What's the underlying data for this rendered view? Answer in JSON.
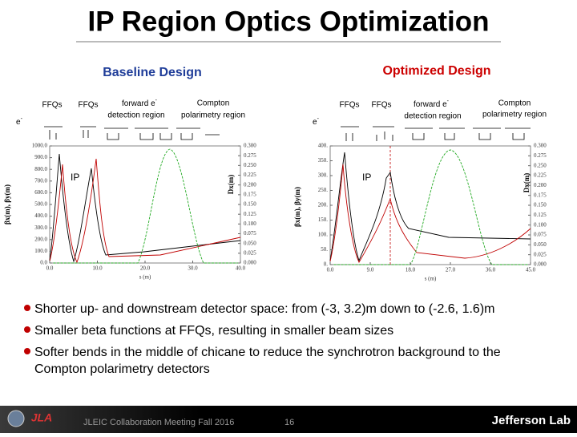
{
  "title": "IP Region Optics Optimization",
  "panels": [
    {
      "heading": "Baseline Design",
      "labels": {
        "ffq_up": "FFQs",
        "ffq_down": "FFQs",
        "forward": "forward e",
        "forward_sup": "-",
        "forward_region": "detection region",
        "compton": "Compton",
        "compton_region": "polarimetry region",
        "beam": "e",
        "beam_sup": "-",
        "ip": "IP"
      },
      "ylabel": "βx(m), βy(m)",
      "y2label": "Dx(m)",
      "xlabel": "s (m)",
      "ylim": [
        0,
        1000
      ],
      "yticks": [
        {
          "value": 0,
          "label": "0.0"
        },
        {
          "value": 100,
          "label": "100.0"
        },
        {
          "value": 200,
          "label": "200.0"
        },
        {
          "value": 300,
          "label": "300.0"
        },
        {
          "value": 400,
          "label": "400.0"
        },
        {
          "value": 500,
          "label": "500.0"
        },
        {
          "value": 600,
          "label": "600.0"
        },
        {
          "value": 700,
          "label": "700.0"
        },
        {
          "value": 800,
          "label": "800.0"
        },
        {
          "value": 900,
          "label": "900.0"
        },
        {
          "value": 1000,
          "label": "1000.0"
        }
      ],
      "y2lim": [
        0,
        0.3
      ],
      "y2ticks": [
        {
          "value": 0,
          "label": "0.000"
        },
        {
          "value": 0.025,
          "label": "0.025"
        },
        {
          "value": 0.05,
          "label": "0.050"
        },
        {
          "value": 0.075,
          "label": "0.075"
        },
        {
          "value": 0.1,
          "label": "0.100"
        },
        {
          "value": 0.125,
          "label": "0.125"
        },
        {
          "value": 0.15,
          "label": "0.150"
        },
        {
          "value": 0.175,
          "label": "0.175"
        },
        {
          "value": 0.2,
          "label": "0.200"
        },
        {
          "value": 0.225,
          "label": "0.225"
        },
        {
          "value": 0.25,
          "label": "0.250"
        },
        {
          "value": 0.275,
          "label": "0.275"
        },
        {
          "value": 0.3,
          "label": "0.300"
        }
      ],
      "xlim": [
        0,
        40
      ],
      "xticks": [
        {
          "value": 0,
          "label": "0.0"
        },
        {
          "value": 10,
          "label": "10.0"
        },
        {
          "value": 20,
          "label": "20.0"
        },
        {
          "value": 30,
          "label": "30.0"
        },
        {
          "value": 40,
          "label": "40.0"
        }
      ]
    },
    {
      "heading": "Optimized Design",
      "labels": {
        "ffq_up": "FFQs",
        "ffq_down": "FFQs",
        "forward": "forward e",
        "forward_sup": "-",
        "forward_region": "detection region",
        "compton": "Compton",
        "compton_region": "polarimetry region",
        "beam": "e",
        "beam_sup": "-",
        "ip": "IP"
      },
      "ylabel": "βx(m), βy(m)",
      "y2label": "Dx(m)",
      "xlabel": "s (m)",
      "ylim": [
        0,
        400
      ],
      "yticks": [
        {
          "value": 0,
          "label": "0."
        },
        {
          "value": 50,
          "label": "50."
        },
        {
          "value": 100,
          "label": "100."
        },
        {
          "value": 150,
          "label": "150."
        },
        {
          "value": 200,
          "label": "200."
        },
        {
          "value": 250,
          "label": "250."
        },
        {
          "value": 300,
          "label": "300."
        },
        {
          "value": 350,
          "label": "350."
        },
        {
          "value": 400,
          "label": "400."
        }
      ],
      "y2lim": [
        0,
        0.3
      ],
      "y2ticks": [
        {
          "value": 0,
          "label": "0.000"
        },
        {
          "value": 0.025,
          "label": "0.025"
        },
        {
          "value": 0.05,
          "label": "0.050"
        },
        {
          "value": 0.075,
          "label": "0.075"
        },
        {
          "value": 0.1,
          "label": "0.100"
        },
        {
          "value": 0.125,
          "label": "0.125"
        },
        {
          "value": 0.15,
          "label": "0.150"
        },
        {
          "value": 0.175,
          "label": "0.175"
        },
        {
          "value": 0.2,
          "label": "0.200"
        },
        {
          "value": 0.225,
          "label": "0.225"
        },
        {
          "value": 0.25,
          "label": "0.250"
        },
        {
          "value": 0.275,
          "label": "0.275"
        },
        {
          "value": 0.3,
          "label": "0.300"
        }
      ],
      "xlim": [
        0,
        45
      ],
      "xticks": [
        {
          "value": 0,
          "label": "0.0"
        },
        {
          "value": 9,
          "label": "9.0"
        },
        {
          "value": 18,
          "label": "18.0"
        },
        {
          "value": 27,
          "label": "27.0"
        },
        {
          "value": 36,
          "label": "36.0"
        },
        {
          "value": 45,
          "label": "45.0"
        }
      ]
    }
  ],
  "bullets": [
    "Shorter up- and downstream detector space: from (-3, 3.2)m down to (-2.6, 1.6)m",
    "Smaller beta functions at FFQs, resulting in smaller beam sizes",
    "Softer bends in the middle of chicane to reduce the synchrotron background to the",
    "Compton polarimetry detectors"
  ],
  "footer": {
    "meeting": "JLEIC Collaboration Meeting Fall 2016",
    "page": "16",
    "lab": "Jefferson Lab",
    "logo": "JLA"
  }
}
